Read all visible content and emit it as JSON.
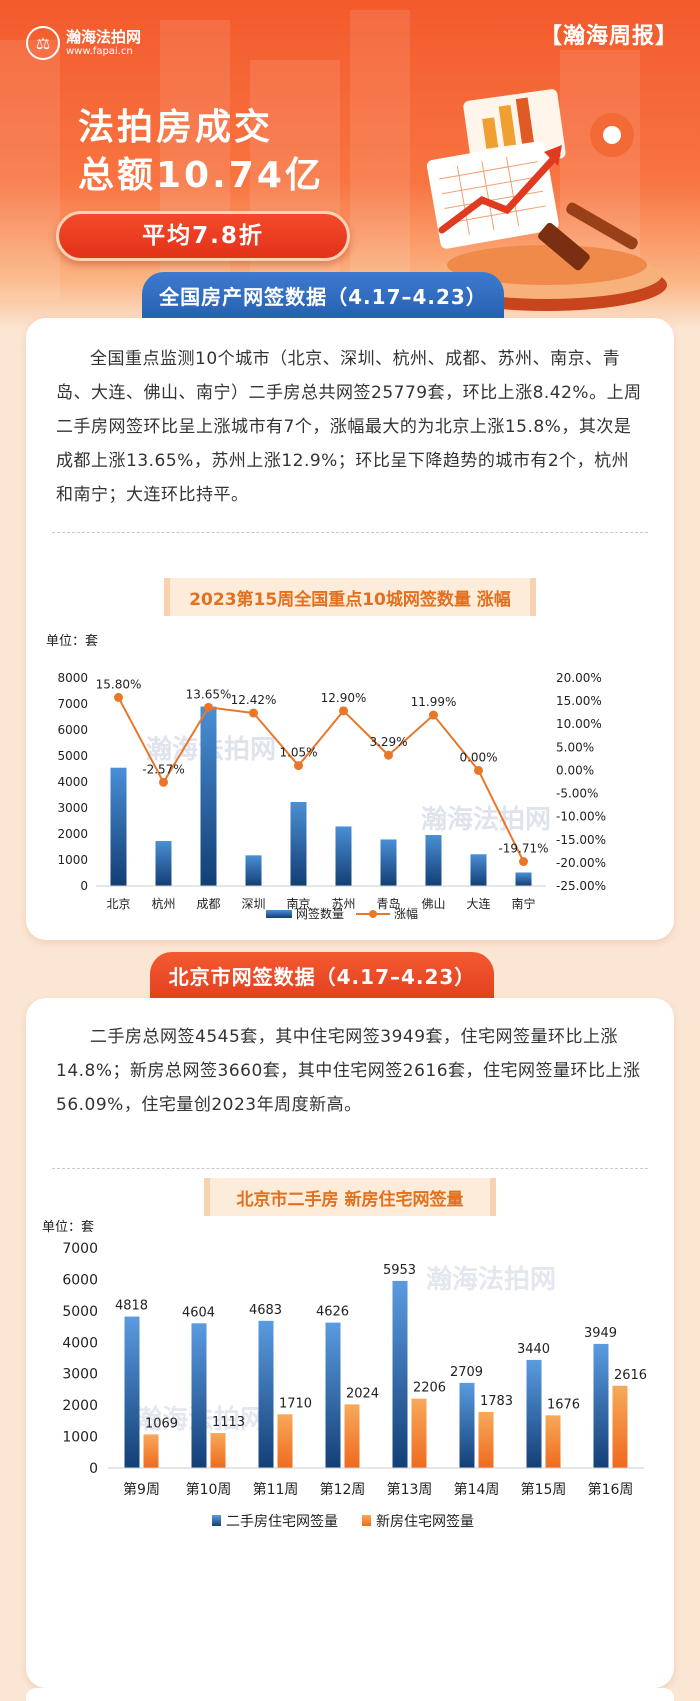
{
  "brand": {
    "name": "瀚海法拍网",
    "url": "www.fapai.cn",
    "mark": "®"
  },
  "report_tag": "【瀚海周报】",
  "hero": {
    "line1": "法拍房成交",
    "line2": "总额10.74亿",
    "pill": "平均7.8折"
  },
  "section1": {
    "tab": "全国房产网签数据（4.17–4.23）",
    "paragraph": "全国重点监测10个城市（北京、深圳、杭州、成都、苏州、南京、青岛、大连、佛山、南宁）二手房总共网签25779套，环比上涨8.42%。上周二手房网签环比呈上涨城市有7个，涨幅最大的为北京上涨15.8%，其次是成都上涨13.65%，苏州上涨12.9%；环比呈下降趋势的城市有2个，杭州和南宁；大连环比持平。",
    "chart_title": "2023第15周全国重点10城网签数量 涨幅",
    "unit": "单位：套"
  },
  "section2": {
    "tab": "北京市网签数据（4.17–4.23）",
    "paragraph": "二手房总网签4545套，其中住宅网签3949套，住宅网签量环比上涨14.8%；新房总网签3660套，其中住宅网签2616套，住宅网签量环比上涨56.09%，住宅量创2023年周度新高。",
    "chart_title": "北京市二手房 新房住宅网签量",
    "unit": "单位：套"
  },
  "colors": {
    "bar_blue": "#1f5fa3",
    "line_orange": "#e8772a",
    "bar_orange": "#f3892f"
  },
  "chart_data": [
    {
      "type": "bar",
      "title": "2023第15周全国重点10城网签数量 涨幅",
      "ylabel": "单位：套",
      "categories": [
        "北京",
        "杭州",
        "成都",
        "深圳",
        "南京",
        "苏州",
        "青岛",
        "佛山",
        "大连",
        "南宁"
      ],
      "ylim": [
        0,
        8000
      ],
      "y_ticks": [
        0,
        1000,
        2000,
        3000,
        4000,
        5000,
        6000,
        7000,
        8000
      ],
      "y2lim": [
        -25,
        20
      ],
      "y2_ticks": [
        "20.00%",
        "15.00%",
        "10.00%",
        "5.00%",
        "0.00%",
        "-5.00%",
        "-10.00%",
        "-15.00%",
        "-20.00%",
        "-25.00%"
      ],
      "series": [
        {
          "name": "网签数量",
          "type": "bar",
          "values": [
            4550,
            1730,
            6900,
            1180,
            3230,
            2290,
            1790,
            1960,
            1220,
            520
          ]
        },
        {
          "name": "涨幅",
          "type": "line",
          "axis": "right",
          "values": [
            15.8,
            -2.57,
            13.65,
            12.42,
            1.05,
            12.9,
            3.29,
            11.99,
            0.0,
            -19.71
          ],
          "labels": [
            "15.80%",
            "-2.57%",
            "13.65%",
            "12.42%",
            "1.05%",
            "12.90%",
            "3.29%",
            "11.99%",
            "0.00%",
            "-19.71%"
          ]
        }
      ],
      "legend": "bottom",
      "grid": false
    },
    {
      "type": "bar",
      "title": "北京市二手房 新房住宅网签量",
      "ylabel": "单位：套",
      "categories": [
        "第9周",
        "第10周",
        "第11周",
        "第12周",
        "第13周",
        "第14周",
        "第15周",
        "第16周"
      ],
      "ylim": [
        0,
        7000
      ],
      "y_ticks": [
        0,
        1000,
        2000,
        3000,
        4000,
        5000,
        6000,
        7000
      ],
      "series": [
        {
          "name": "二手房住宅网签量",
          "values": [
            4818,
            4604,
            4683,
            4626,
            5953,
            2709,
            3440,
            3949
          ]
        },
        {
          "name": "新房住宅网签量",
          "values": [
            1069,
            1113,
            1710,
            2024,
            2206,
            1783,
            1676,
            2616
          ]
        }
      ],
      "legend": "bottom",
      "grid": false
    }
  ]
}
